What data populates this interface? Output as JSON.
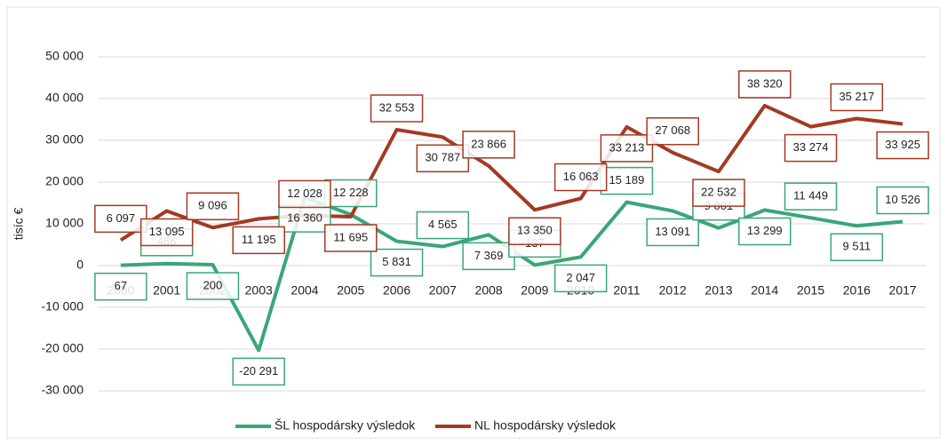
{
  "chart_data": {
    "type": "line",
    "y_label": "tisíc €",
    "categories": [
      "2000",
      "2001",
      "2002",
      "2003",
      "2004",
      "2005",
      "2006",
      "2007",
      "2008",
      "2009",
      "2010",
      "2011",
      "2012",
      "2013",
      "2014",
      "2015",
      "2016",
      "2017"
    ],
    "series": [
      {
        "name": "ŠL hospodársky výsledok",
        "color": "#3aa676",
        "values": [
          67,
          466,
          200,
          -20291,
          16360,
          12228,
          5831,
          4565,
          7369,
          137,
          2047,
          15189,
          13091,
          9001,
          13299,
          11449,
          9511,
          10526
        ],
        "value_labels": [
          "67",
          "466",
          "200",
          "-20 291",
          "16 360",
          "12 228",
          "5 831",
          "4 565",
          "7 369",
          "137",
          "2 047",
          "15 189",
          "13 091",
          "9 001",
          "13 299",
          "11 449",
          "9 511",
          "10 526"
        ]
      },
      {
        "name": "NL hospodársky výsledok",
        "color": "#a33a24",
        "values": [
          6097,
          13095,
          9096,
          11195,
          12028,
          11695,
          32553,
          30787,
          23866,
          13350,
          16063,
          33213,
          27068,
          22532,
          38320,
          33274,
          35217,
          33925
        ],
        "value_labels": [
          "6 097",
          "13 095",
          "9 096",
          "11 195",
          "12 028",
          "11 695",
          "32 553",
          "30 787",
          "23 866",
          "13 350",
          "16 063",
          "33 213",
          "27 068",
          "22 532",
          "38 320",
          "33 274",
          "35 217",
          "33 925"
        ]
      }
    ],
    "ylim": [
      -30000,
      50000
    ],
    "yticks": [
      {
        "value": -30000,
        "label": "-30 000"
      },
      {
        "value": -20000,
        "label": "-20 000"
      },
      {
        "value": -10000,
        "label": "-10 000"
      },
      0,
      {
        "value": 10000,
        "label": "10 000"
      },
      {
        "value": 20000,
        "label": "20 000"
      },
      {
        "value": 30000,
        "label": "30 000"
      },
      {
        "value": 40000,
        "label": "40 000"
      },
      {
        "value": 50000,
        "label": "50 000"
      }
    ],
    "grid": true
  }
}
